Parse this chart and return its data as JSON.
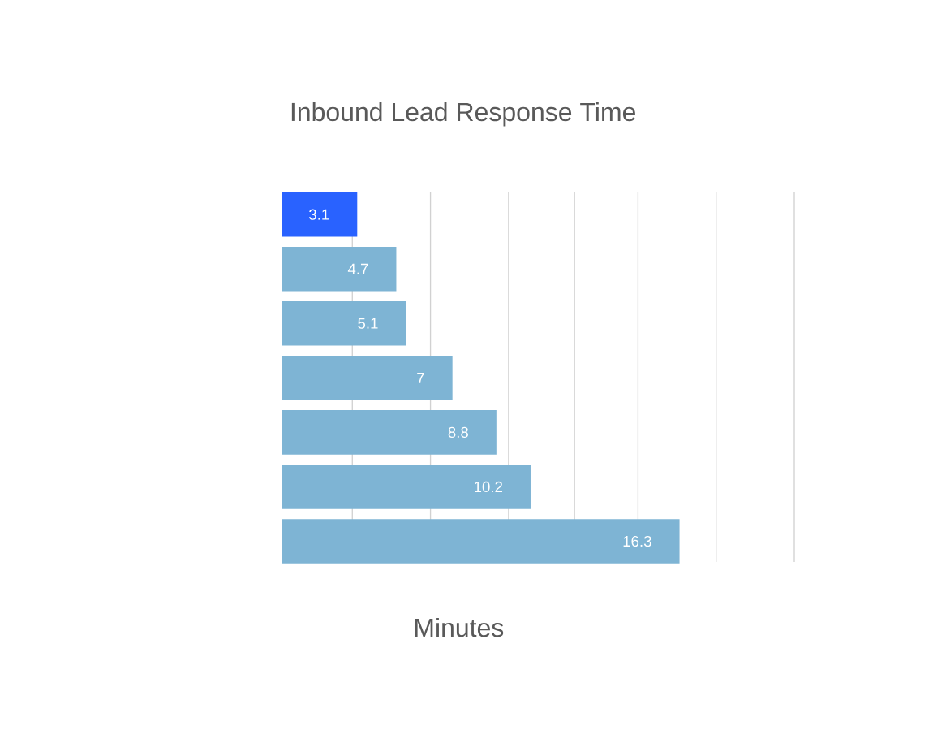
{
  "chart_data": {
    "type": "bar",
    "orientation": "horizontal",
    "title": "Inbound Lead Response Time",
    "xlabel": "Minutes",
    "categories": [
      null,
      null,
      null,
      null,
      null,
      null,
      null
    ],
    "values": [
      3.1,
      4.7,
      5.1,
      7,
      8.8,
      10.2,
      16.3
    ],
    "colors": [
      "#2962ff",
      "#7eb4d4",
      "#7eb4d4",
      "#7eb4d4",
      "#7eb4d4",
      "#7eb4d4",
      "#7eb4d4"
    ],
    "xlim": [
      0,
      21
    ],
    "xticks": [
      {
        "value": 2.9,
        "label": null
      },
      {
        "value": 6.1,
        "label": null
      },
      {
        "value": 9.3,
        "label": null
      },
      {
        "value": 12.0,
        "label": null
      },
      {
        "value": 14.6,
        "label": null
      },
      {
        "value": 17.8,
        "label": null
      },
      {
        "value": 21.0,
        "label": null
      }
    ],
    "grid": "x",
    "data_labels": true
  }
}
